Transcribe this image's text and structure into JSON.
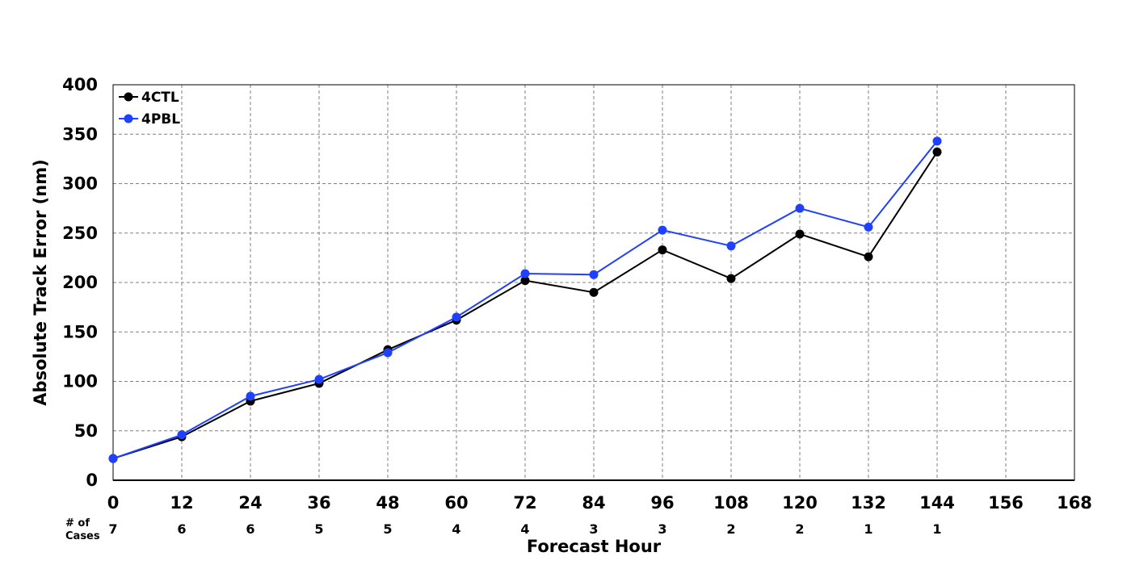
{
  "chart_data": {
    "type": "line",
    "xlabel": "Forecast Hour",
    "ylabel": "Absolute Track Error (nm)",
    "x": [
      0,
      12,
      24,
      36,
      48,
      60,
      72,
      84,
      96,
      108,
      120,
      132,
      144
    ],
    "xticks": [
      0,
      12,
      24,
      36,
      48,
      60,
      72,
      84,
      96,
      108,
      120,
      132,
      144,
      156,
      168
    ],
    "yticks": [
      0,
      50,
      100,
      150,
      200,
      250,
      300,
      350,
      400
    ],
    "xlim": [
      0,
      168
    ],
    "ylim": [
      0,
      400
    ],
    "grid": true,
    "legend_position": "top-left",
    "cases_label_line1": "# of",
    "cases_label_line2": "Cases",
    "cases": [
      7,
      6,
      6,
      5,
      5,
      4,
      4,
      3,
      3,
      2,
      2,
      1,
      1
    ],
    "series": [
      {
        "name": "4CTL",
        "color": "#000000",
        "values": [
          22,
          44,
          80,
          98,
          132,
          162,
          202,
          190,
          233,
          204,
          249,
          226,
          332
        ]
      },
      {
        "name": "4PBL",
        "color": "#2040ff",
        "values": [
          22,
          46,
          85,
          102,
          129,
          165,
          209,
          208,
          253,
          237,
          275,
          256,
          343
        ]
      }
    ]
  }
}
